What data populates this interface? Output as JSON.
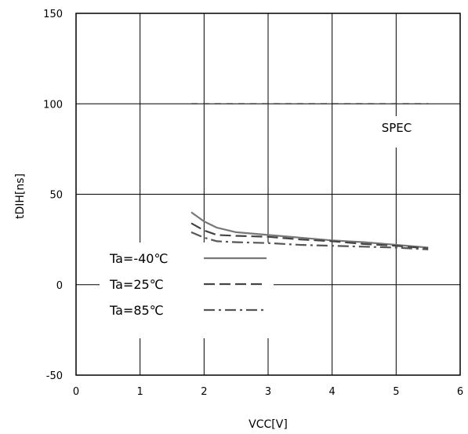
{
  "chart_data": {
    "type": "line",
    "title": "",
    "xlabel": "VCC[V]",
    "ylabel": "tDIH[ns]",
    "xlim": [
      0,
      6
    ],
    "ylim": [
      -50,
      150
    ],
    "xticks": [
      "0",
      "1",
      "2",
      "3",
      "4",
      "5",
      "6"
    ],
    "yticks": [
      "-50",
      "0",
      "50",
      "100",
      "150"
    ],
    "grid": true,
    "legend": "bottom-left",
    "spec_label": "SPEC",
    "spec_line": {
      "x": [
        1.8,
        5.5
      ],
      "y": [
        100,
        100
      ],
      "color": "#333333"
    },
    "series": [
      {
        "name": "Ta=-40℃",
        "dash": "solid",
        "color": "#777777",
        "x": [
          1.8,
          2.0,
          2.2,
          2.5,
          3.0,
          3.5,
          4.0,
          4.5,
          5.0,
          5.5
        ],
        "y": [
          40,
          35,
          31.5,
          29,
          27.5,
          26,
          24.5,
          23.5,
          22,
          20.5
        ]
      },
      {
        "name": "Ta=25℃",
        "dash": "dashed",
        "color": "#444444",
        "x": [
          1.8,
          2.0,
          2.2,
          2.5,
          3.0,
          3.5,
          4.0,
          4.5,
          5.0,
          5.5
        ],
        "y": [
          34,
          30,
          27.5,
          27,
          26.5,
          25,
          24,
          22.5,
          21.5,
          20
        ]
      },
      {
        "name": "Ta=85℃",
        "dash": "dashdot",
        "color": "#555555",
        "x": [
          1.8,
          2.0,
          2.2,
          2.5,
          3.0,
          3.5,
          4.0,
          4.5,
          5.0,
          5.5
        ],
        "y": [
          29,
          26,
          24,
          23.5,
          23,
          22,
          21.5,
          21,
          20.5,
          19.5
        ]
      }
    ]
  }
}
